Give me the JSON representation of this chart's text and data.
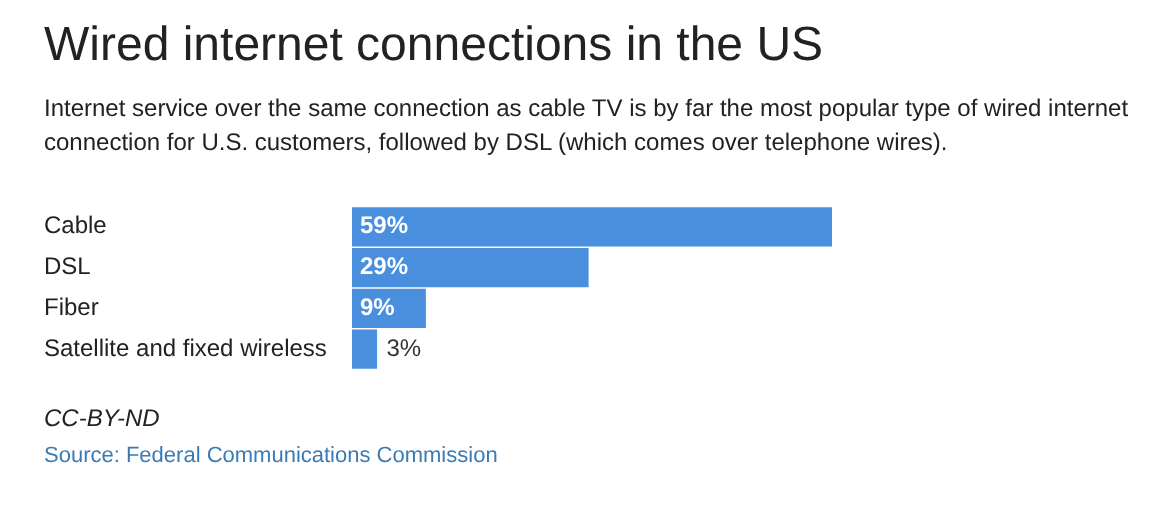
{
  "chart_data": {
    "type": "bar",
    "orientation": "horizontal",
    "title": "Wired internet connections in the US",
    "subtitle": "Internet service over the same connection as cable TV is by far the most popular type of wired internet connection for U.S. customers, followed by DSL (which comes over telephone wires).",
    "categories": [
      "Cable",
      "DSL",
      "Fiber",
      "Satellite and fixed wireless"
    ],
    "values": [
      59,
      29,
      9,
      3
    ],
    "value_labels": [
      "59%",
      "29%",
      "9%",
      "3%"
    ],
    "color": "#4a8ede",
    "legend": false,
    "annotations": [
      "CC-BY-ND",
      "Source: Federal Communications Commission"
    ]
  }
}
